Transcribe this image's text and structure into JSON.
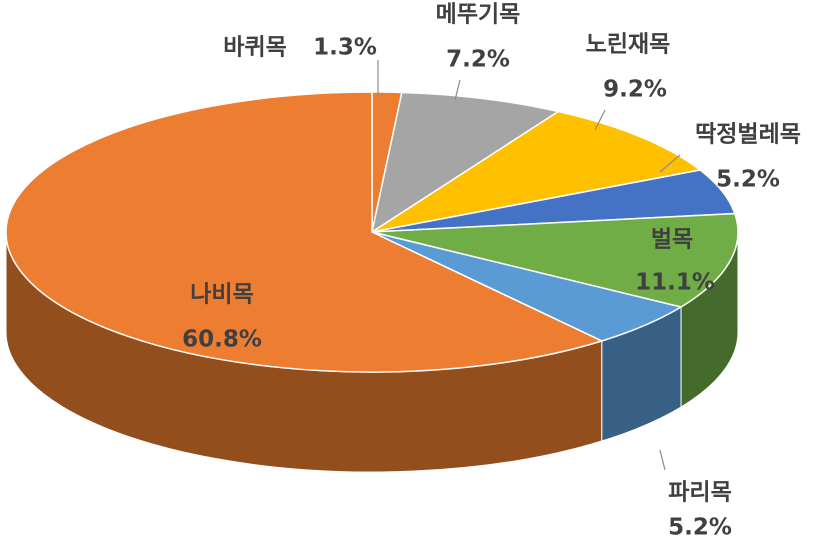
{
  "chart_data": {
    "type": "pie3d",
    "categories": [
      "바퀴목",
      "메뚜기목",
      "노린재목",
      "딱정벌레목",
      "벌목",
      "파리목",
      "나비목"
    ],
    "values": [
      1.3,
      7.2,
      9.2,
      5.2,
      11.1,
      5.2,
      60.8
    ],
    "value_labels": [
      "1.3%",
      "7.2%",
      "9.2%",
      "5.2%",
      "11.1%",
      "5.2%",
      "60.8%"
    ],
    "colors": [
      "#ED7D31",
      "#A5A5A5",
      "#FFC000",
      "#4472C4",
      "#70AD47",
      "#5B9BD5",
      "#ED7D31"
    ]
  }
}
